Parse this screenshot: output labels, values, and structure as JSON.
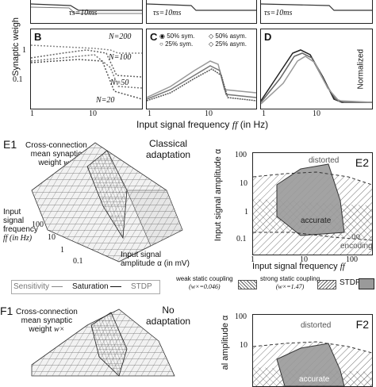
{
  "top": {
    "ylabel": "Synaptic weigh",
    "tau_labels": [
      "τs=10ms",
      "τs=10ms",
      "τs=10ms"
    ],
    "xlabel": "Input signal frequency",
    "xlabel_symbol": "ff",
    "xlabel_unit": "(in Hz)",
    "panels": {
      "B": {
        "label": "B",
        "n_labels": [
          "N=200",
          "N=100",
          "N=50",
          "N=20"
        ]
      },
      "C": {
        "label": "C",
        "legend": [
          "50% sym.",
          "25% sym.",
          "50% asym.",
          "25% asym."
        ]
      },
      "D": {
        "label": "D",
        "side_label": "Normalized"
      }
    },
    "y_ticks": [
      "1",
      "0.1"
    ],
    "x_ticks": [
      "1",
      "10"
    ]
  },
  "E1": {
    "label": "E1",
    "z_title": [
      "Cross-connection",
      "mean synaptic",
      "weight"
    ],
    "z_symbol": "w×",
    "side_title": [
      "Classical",
      "adaptation"
    ],
    "left_axis": [
      "Input",
      "signal",
      "frequency",
      "ff (in Hz)"
    ],
    "bottom_axis": [
      "Input signal",
      "amplitude α (in mV)"
    ],
    "ticks_freq": [
      "100",
      "10",
      "1",
      "0.1"
    ],
    "ticks_amp": [
      "1",
      "10",
      "100"
    ]
  },
  "E2": {
    "label": "E2",
    "ylabel": "Input signal amplitude α",
    "xlabel": "Input signal frequency",
    "xlabel_symbol": "ff",
    "y_ticks": [
      "100",
      "10",
      "1",
      "0.1"
    ],
    "x_ticks": [
      "1",
      "10",
      "100"
    ],
    "regions": [
      "distorted",
      "accurate",
      "no",
      "encoding"
    ]
  },
  "legend": {
    "items": [
      "Sensitivity",
      "Saturation",
      "STDP"
    ],
    "coupling": [
      {
        "title": "weak static coupling",
        "value": "(w×=0.046)"
      },
      {
        "title": "strong static coupling",
        "value": "(w×=1.47)"
      }
    ],
    "stdp": "STDP"
  },
  "F1": {
    "label": "F1",
    "z_title": [
      "Cross-connection",
      "mean synaptic",
      "weight"
    ],
    "z_symbol": "w×",
    "side_title": [
      "No",
      "adaptation"
    ]
  },
  "F2": {
    "label": "F2",
    "ylabel": "al amplitude α",
    "y_ticks": [
      "100",
      "10"
    ],
    "regions": [
      "distorted",
      "accurate"
    ]
  },
  "colors": {
    "surface": "#f2f2f2",
    "hatch": "#555555",
    "stdp_fill": "#9a9a9a"
  }
}
